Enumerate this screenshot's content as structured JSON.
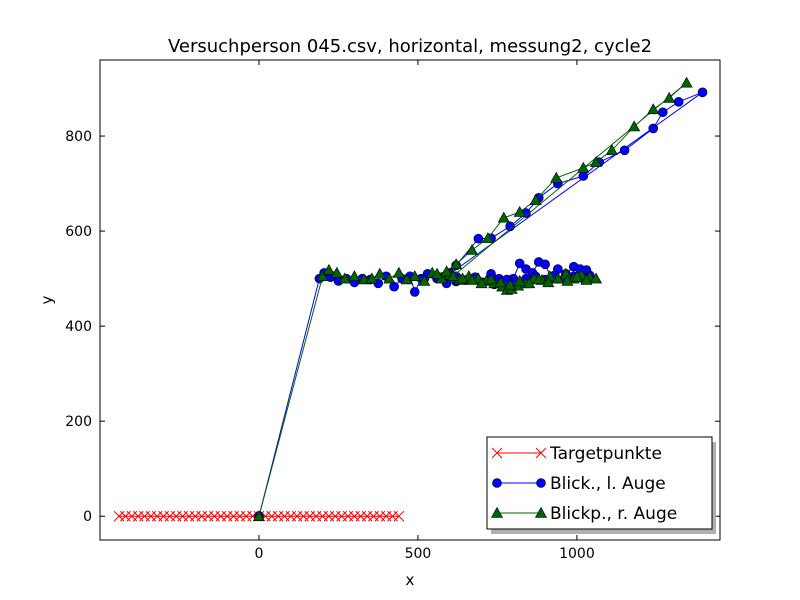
{
  "chart_data": {
    "type": "line",
    "title": "Versuchperson 045.csv, horizontal, messung2, cycle2",
    "xlabel": "x",
    "ylabel": "y",
    "xlim": [
      -500,
      1450
    ],
    "ylim": [
      -50,
      960
    ],
    "xticks": [
      0,
      500,
      1000
    ],
    "yticks": [
      0,
      200,
      400,
      600,
      800
    ],
    "grid": false,
    "legend_position": "lower-right",
    "series": [
      {
        "name": "Targetpunkte",
        "color": "#ff0000",
        "marker": "x",
        "points": [
          [
            -440,
            0
          ],
          [
            -420,
            0
          ],
          [
            -400,
            0
          ],
          [
            -380,
            0
          ],
          [
            -360,
            0
          ],
          [
            -340,
            0
          ],
          [
            -320,
            0
          ],
          [
            -300,
            0
          ],
          [
            -280,
            0
          ],
          [
            -260,
            0
          ],
          [
            -240,
            0
          ],
          [
            -220,
            0
          ],
          [
            -200,
            0
          ],
          [
            -180,
            0
          ],
          [
            -160,
            0
          ],
          [
            -140,
            0
          ],
          [
            -120,
            0
          ],
          [
            -100,
            0
          ],
          [
            -80,
            0
          ],
          [
            -60,
            0
          ],
          [
            -40,
            0
          ],
          [
            -20,
            0
          ],
          [
            0,
            0
          ],
          [
            20,
            0
          ],
          [
            40,
            0
          ],
          [
            60,
            0
          ],
          [
            80,
            0
          ],
          [
            100,
            0
          ],
          [
            120,
            0
          ],
          [
            140,
            0
          ],
          [
            160,
            0
          ],
          [
            180,
            0
          ],
          [
            200,
            0
          ],
          [
            220,
            0
          ],
          [
            240,
            0
          ],
          [
            260,
            0
          ],
          [
            280,
            0
          ],
          [
            300,
            0
          ],
          [
            320,
            0
          ],
          [
            340,
            0
          ],
          [
            360,
            0
          ],
          [
            380,
            0
          ],
          [
            400,
            0
          ],
          [
            420,
            0
          ],
          [
            440,
            0
          ]
        ]
      },
      {
        "name": "Blick., l. Auge",
        "color": "#0000ff",
        "marker": "circle",
        "points": [
          [
            0,
            0
          ],
          [
            190,
            500
          ],
          [
            205,
            512
          ],
          [
            225,
            503
          ],
          [
            250,
            495
          ],
          [
            275,
            500
          ],
          [
            300,
            492
          ],
          [
            325,
            500
          ],
          [
            350,
            498
          ],
          [
            375,
            490
          ],
          [
            400,
            505
          ],
          [
            425,
            483
          ],
          [
            450,
            500
          ],
          [
            475,
            505
          ],
          [
            490,
            472
          ],
          [
            510,
            500
          ],
          [
            530,
            510
          ],
          [
            560,
            500
          ],
          [
            590,
            490
          ],
          [
            620,
            505
          ],
          [
            650,
            497
          ],
          [
            680,
            503
          ],
          [
            705,
            492
          ],
          [
            730,
            510
          ],
          [
            755,
            500
          ],
          [
            780,
            487
          ],
          [
            800,
            500
          ],
          [
            820,
            532
          ],
          [
            840,
            520
          ],
          [
            860,
            512
          ],
          [
            880,
            535
          ],
          [
            900,
            530
          ],
          [
            920,
            500
          ],
          [
            940,
            520
          ],
          [
            965,
            510
          ],
          [
            990,
            525
          ],
          [
            1010,
            520
          ],
          [
            1030,
            518
          ],
          [
            1040,
            507
          ],
          [
            1020,
            500
          ],
          [
            990,
            505
          ],
          [
            960,
            500
          ],
          [
            930,
            507
          ],
          [
            900,
            498
          ],
          [
            870,
            505
          ],
          [
            840,
            500
          ],
          [
            810,
            492
          ],
          [
            780,
            498
          ],
          [
            740,
            488
          ],
          [
            700,
            492
          ],
          [
            660,
            498
          ],
          [
            620,
            494
          ],
          [
            580,
            500
          ],
          [
            1395,
            892
          ],
          [
            1320,
            872
          ],
          [
            1270,
            850
          ],
          [
            1240,
            816
          ],
          [
            1150,
            770
          ],
          [
            1070,
            745
          ],
          [
            1020,
            716
          ],
          [
            940,
            700
          ],
          [
            880,
            670
          ],
          [
            840,
            638
          ],
          [
            790,
            610
          ],
          [
            730,
            585
          ],
          [
            690,
            584
          ],
          [
            620,
            528
          ],
          [
            600,
            512
          ],
          [
            560,
            505
          ],
          [
            520,
            500
          ]
        ]
      },
      {
        "name": "Blickp., r. Auge",
        "color": "#006400",
        "marker": "triangle",
        "points": [
          [
            0,
            0
          ],
          [
            200,
            505
          ],
          [
            220,
            518
          ],
          [
            245,
            512
          ],
          [
            270,
            500
          ],
          [
            300,
            505
          ],
          [
            330,
            498
          ],
          [
            355,
            500
          ],
          [
            380,
            510
          ],
          [
            410,
            500
          ],
          [
            440,
            512
          ],
          [
            465,
            498
          ],
          [
            490,
            505
          ],
          [
            520,
            495
          ],
          [
            545,
            512
          ],
          [
            575,
            500
          ],
          [
            600,
            508
          ],
          [
            630,
            497
          ],
          [
            660,
            505
          ],
          [
            690,
            500
          ],
          [
            715,
            495
          ],
          [
            740,
            490
          ],
          [
            765,
            483
          ],
          [
            780,
            476
          ],
          [
            795,
            478
          ],
          [
            815,
            485
          ],
          [
            840,
            490
          ],
          [
            865,
            500
          ],
          [
            890,
            497
          ],
          [
            915,
            505
          ],
          [
            940,
            500
          ],
          [
            965,
            510
          ],
          [
            990,
            500
          ],
          [
            1015,
            507
          ],
          [
            1040,
            503
          ],
          [
            1060,
            500
          ],
          [
            1030,
            497
          ],
          [
            1000,
            503
          ],
          [
            970,
            495
          ],
          [
            940,
            500
          ],
          [
            910,
            492
          ],
          [
            880,
            498
          ],
          [
            850,
            490
          ],
          [
            820,
            495
          ],
          [
            790,
            487
          ],
          [
            760,
            492
          ],
          [
            730,
            498
          ],
          [
            700,
            490
          ],
          [
            670,
            497
          ],
          [
            640,
            500
          ],
          [
            610,
            505
          ],
          [
            1345,
            912
          ],
          [
            1290,
            880
          ],
          [
            1240,
            856
          ],
          [
            1180,
            820
          ],
          [
            1110,
            770
          ],
          [
            1060,
            745
          ],
          [
            1020,
            733
          ],
          [
            935,
            712
          ],
          [
            870,
            665
          ],
          [
            820,
            640
          ],
          [
            770,
            628
          ],
          [
            720,
            585
          ],
          [
            670,
            560
          ],
          [
            620,
            530
          ],
          [
            590,
            515
          ],
          [
            560,
            510
          ]
        ]
      }
    ]
  }
}
